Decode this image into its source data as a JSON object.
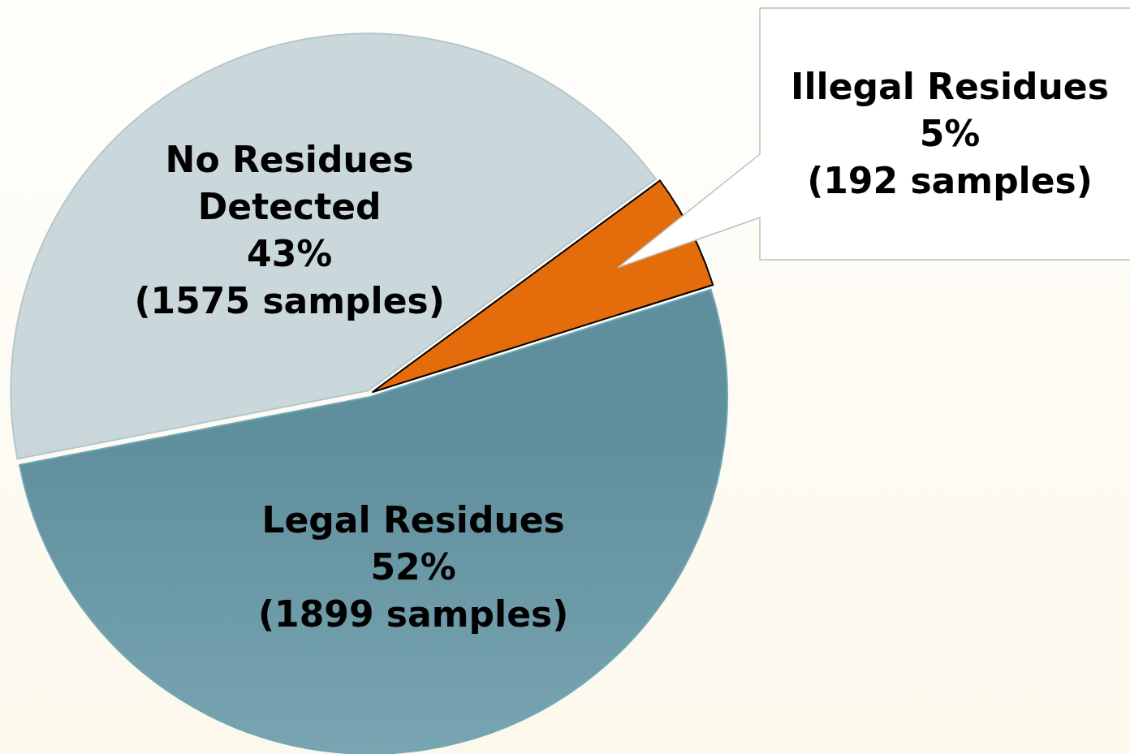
{
  "chart_data": {
    "type": "pie",
    "categories": [
      "No Residues Detected",
      "Illegal Residues",
      "Legal Residues"
    ],
    "values": [
      1575,
      192,
      1899
    ],
    "value_labels": [
      "43%\n(1575 samples)",
      "5%\n(192 samples)",
      "52%\n(1899 samples)"
    ],
    "colors": [
      "#b3c7cd",
      "#e46c0a",
      "#6fa7b6"
    ]
  }
}
